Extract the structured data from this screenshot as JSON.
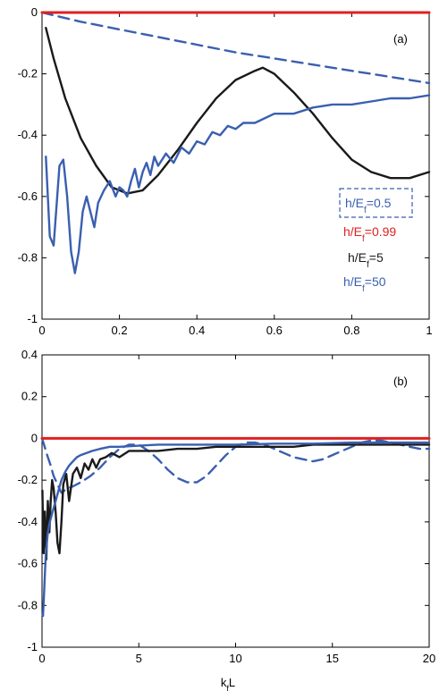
{
  "chart_data": [
    {
      "type": "line",
      "panel_label": "(a)",
      "xlabel": "",
      "ylabel": "",
      "xlim": [
        0,
        1
      ],
      "ylim": [
        -1,
        0
      ],
      "xticks": [
        "0",
        "0.2",
        "0.4",
        "0.6",
        "0.8",
        "1"
      ],
      "yticks": [
        "0",
        "-0.2",
        "-0.4",
        "-0.6",
        "-0.8",
        "-1"
      ],
      "grid": false,
      "legend_position": "bottom-right",
      "series": [
        {
          "name": "h/E_f=0.5",
          "label_main": "h/E",
          "label_sub": "f",
          "label_tail": "=0.5",
          "color": "#3a5fb0",
          "dash": true,
          "x": [
            0,
            0.1,
            0.2,
            0.3,
            0.4,
            0.5,
            0.6,
            0.7,
            0.8,
            0.9,
            1.0
          ],
          "y": [
            0,
            -0.03,
            -0.055,
            -0.08,
            -0.105,
            -0.13,
            -0.15,
            -0.17,
            -0.19,
            -0.21,
            -0.23
          ]
        },
        {
          "name": "h/E_f=0.99",
          "label_main": "h/E",
          "label_sub": "f",
          "label_tail": "=0.99",
          "color": "#e02020",
          "dash": false,
          "x": [
            0,
            0.25,
            0.5,
            0.75,
            1.0
          ],
          "y": [
            0,
            0,
            0,
            0,
            0
          ]
        },
        {
          "name": "h/E_f=5",
          "label_main": "h/E",
          "label_sub": "f",
          "label_tail": "=5",
          "color": "#1a1a1a",
          "dash": false,
          "x": [
            0.01,
            0.03,
            0.06,
            0.1,
            0.14,
            0.18,
            0.22,
            0.26,
            0.3,
            0.35,
            0.4,
            0.45,
            0.5,
            0.55,
            0.57,
            0.6,
            0.65,
            0.7,
            0.75,
            0.8,
            0.85,
            0.9,
            0.95,
            1.0
          ],
          "y": [
            -0.05,
            -0.15,
            -0.28,
            -0.41,
            -0.5,
            -0.57,
            -0.59,
            -0.58,
            -0.53,
            -0.45,
            -0.36,
            -0.28,
            -0.22,
            -0.19,
            -0.18,
            -0.2,
            -0.26,
            -0.33,
            -0.41,
            -0.48,
            -0.52,
            -0.54,
            -0.54,
            -0.52
          ]
        },
        {
          "name": "h/E_f=50",
          "label_main": "h/E",
          "label_sub": "f",
          "label_tail": "=50",
          "color": "#3a5fb0",
          "dash": false,
          "x": [
            0.01,
            0.02,
            0.03,
            0.045,
            0.055,
            0.065,
            0.075,
            0.085,
            0.095,
            0.105,
            0.115,
            0.125,
            0.135,
            0.145,
            0.16,
            0.175,
            0.19,
            0.2,
            0.21,
            0.22,
            0.23,
            0.24,
            0.25,
            0.26,
            0.27,
            0.28,
            0.29,
            0.3,
            0.32,
            0.34,
            0.36,
            0.38,
            0.4,
            0.42,
            0.44,
            0.46,
            0.48,
            0.5,
            0.52,
            0.55,
            0.6,
            0.65,
            0.7,
            0.75,
            0.8,
            0.85,
            0.9,
            0.95,
            1.0
          ],
          "y": [
            -0.47,
            -0.73,
            -0.76,
            -0.5,
            -0.48,
            -0.6,
            -0.78,
            -0.85,
            -0.78,
            -0.65,
            -0.6,
            -0.65,
            -0.7,
            -0.62,
            -0.58,
            -0.55,
            -0.6,
            -0.57,
            -0.58,
            -0.6,
            -0.55,
            -0.51,
            -0.57,
            -0.52,
            -0.49,
            -0.53,
            -0.47,
            -0.5,
            -0.46,
            -0.49,
            -0.44,
            -0.46,
            -0.42,
            -0.43,
            -0.39,
            -0.4,
            -0.37,
            -0.38,
            -0.36,
            -0.36,
            -0.33,
            -0.33,
            -0.31,
            -0.3,
            -0.3,
            -0.29,
            -0.28,
            -0.28,
            -0.27
          ]
        }
      ]
    },
    {
      "type": "line",
      "panel_label": "(b)",
      "xlabel_main": "k",
      "xlabel_sub": "f",
      "xlabel_tail": "L",
      "ylabel": "",
      "xlim": [
        0,
        20
      ],
      "ylim": [
        -1,
        0.4
      ],
      "xticks": [
        "0",
        "5",
        "10",
        "15",
        "20"
      ],
      "yticks": [
        "0.4",
        "0.2",
        "0",
        "-0.2",
        "-0.4",
        "-0.6",
        "-0.8",
        "-1"
      ],
      "grid": false,
      "series": [
        {
          "name": "h/E_f=0.5",
          "color": "#3a5fb0",
          "dash": true,
          "x": [
            0,
            0.1,
            0.2,
            0.3,
            0.45,
            0.6,
            0.8,
            1.0,
            1.3,
            1.6,
            2.0,
            2.5,
            3,
            3.5,
            4,
            4.5,
            5,
            5.5,
            6,
            6.5,
            7,
            7.5,
            8,
            8.5,
            9,
            9.5,
            10,
            10.5,
            11,
            11.5,
            12,
            12.5,
            13,
            13.5,
            14,
            14.5,
            15,
            15.5,
            16,
            16.5,
            17,
            17.5,
            18,
            18.5,
            19,
            19.5,
            20
          ],
          "y": [
            0,
            -0.03,
            -0.06,
            -0.09,
            -0.13,
            -0.18,
            -0.22,
            -0.26,
            -0.24,
            -0.23,
            -0.21,
            -0.18,
            -0.14,
            -0.09,
            -0.05,
            -0.03,
            -0.03,
            -0.06,
            -0.1,
            -0.15,
            -0.19,
            -0.21,
            -0.21,
            -0.18,
            -0.13,
            -0.08,
            -0.04,
            -0.02,
            -0.02,
            -0.03,
            -0.05,
            -0.07,
            -0.09,
            -0.1,
            -0.11,
            -0.1,
            -0.08,
            -0.06,
            -0.04,
            -0.02,
            -0.01,
            -0.01,
            -0.02,
            -0.03,
            -0.04,
            -0.05,
            -0.05
          ]
        },
        {
          "name": "h/E_f=0.99",
          "color": "#e02020",
          "dash": false,
          "x": [
            0,
            5,
            10,
            15,
            20
          ],
          "y": [
            0,
            0,
            0,
            0,
            0
          ]
        },
        {
          "name": "h/E_f=5",
          "color": "#1a1a1a",
          "dash": false,
          "x": [
            0.02,
            0.08,
            0.15,
            0.22,
            0.3,
            0.38,
            0.45,
            0.52,
            0.6,
            0.7,
            0.8,
            0.9,
            1.0,
            1.1,
            1.25,
            1.4,
            1.6,
            1.8,
            2.0,
            2.2,
            2.4,
            2.6,
            2.8,
            3.0,
            3.3,
            3.6,
            4.0,
            4.5,
            5,
            6,
            7,
            8,
            9,
            10,
            11,
            12,
            13,
            14,
            15,
            16,
            17,
            18,
            19,
            20
          ],
          "y": [
            -0.25,
            -0.55,
            -0.35,
            -0.58,
            -0.3,
            -0.45,
            -0.3,
            -0.2,
            -0.24,
            -0.35,
            -0.5,
            -0.55,
            -0.4,
            -0.22,
            -0.17,
            -0.3,
            -0.17,
            -0.14,
            -0.19,
            -0.12,
            -0.15,
            -0.1,
            -0.14,
            -0.1,
            -0.09,
            -0.07,
            -0.09,
            -0.06,
            -0.06,
            -0.06,
            -0.05,
            -0.05,
            -0.04,
            -0.04,
            -0.04,
            -0.04,
            -0.04,
            -0.03,
            -0.03,
            -0.03,
            -0.03,
            -0.03,
            -0.03,
            -0.03
          ]
        },
        {
          "name": "h/E_f=50",
          "color": "#3a5fb0",
          "dash": false,
          "x": [
            0.02,
            0.05,
            0.1,
            0.15,
            0.2,
            0.3,
            0.4,
            0.55,
            0.7,
            0.85,
            1.0,
            1.2,
            1.4,
            1.6,
            1.8,
            2.0,
            2.3,
            2.6,
            3.0,
            3.5,
            4,
            5,
            6,
            7,
            8,
            10,
            12,
            14,
            16,
            18,
            20
          ],
          "y": [
            -0.84,
            -0.85,
            -0.75,
            -0.65,
            -0.55,
            -0.45,
            -0.4,
            -0.35,
            -0.3,
            -0.25,
            -0.2,
            -0.16,
            -0.13,
            -0.11,
            -0.09,
            -0.08,
            -0.07,
            -0.06,
            -0.05,
            -0.04,
            -0.04,
            -0.035,
            -0.03,
            -0.03,
            -0.03,
            -0.03,
            -0.025,
            -0.025,
            -0.02,
            -0.02,
            -0.02
          ]
        }
      ]
    }
  ]
}
